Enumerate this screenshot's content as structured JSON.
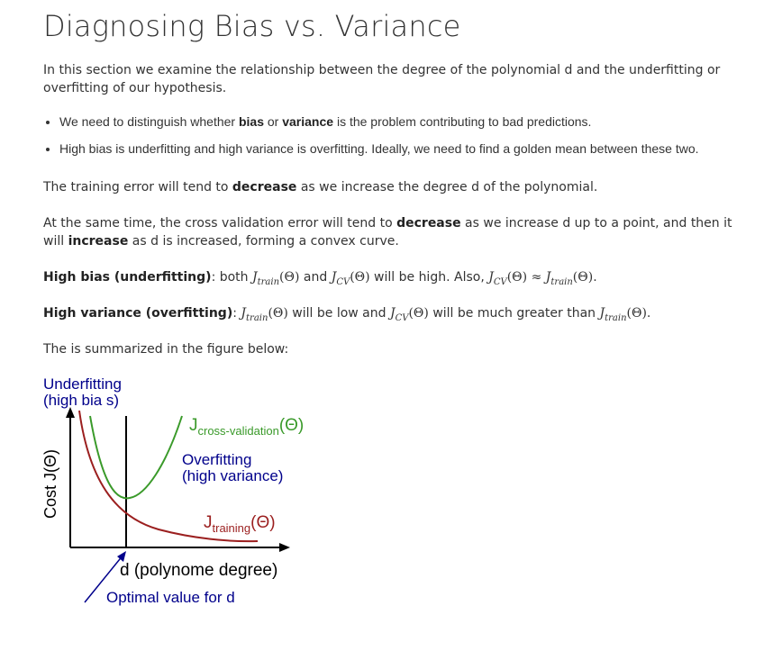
{
  "title": "Diagnosing Bias vs. Variance",
  "intro": "In this section we examine the relationship between the degree of the polynomial d and the underfitting or overfitting of our hypothesis.",
  "bullets": [
    {
      "pre": "We need to distinguish whether ",
      "b1": "bias",
      "mid": " or ",
      "b2": "variance",
      "post": " is the problem contributing to bad predictions."
    },
    {
      "text": "High bias is underfitting and high variance is overfitting. Ideally, we need to find a golden mean between these two."
    }
  ],
  "training_para": {
    "pre": "The training error will tend to ",
    "bold": "decrease",
    "post": " as we increase the degree d of the polynomial."
  },
  "cv_para": {
    "pre": "At the same time, the cross validation error will tend to ",
    "bold1": "decrease",
    "mid": " as we increase d up to a point, and then it will ",
    "bold2": "increase",
    "post": " as d is increased, forming a convex curve."
  },
  "high_bias": {
    "label": "High bias (underfitting)",
    "t1": ": both ",
    "t2": " and ",
    "t3": " will be high. Also, ",
    "t4": "."
  },
  "high_variance": {
    "label": "High variance (overfitting)",
    "t1": ": ",
    "t2": " will be low and ",
    "t3": " will be much greater than ",
    "t4": "."
  },
  "math": {
    "J": "J",
    "train": "train",
    "cv": "CV",
    "theta": "(Θ)",
    "approx": "≈"
  },
  "summary": "The is summarized in the figure below:",
  "figure": {
    "underfit_line1": "Underfitting",
    "underfit_line2": "(high bia s)",
    "overfit_line1": "Overfitting",
    "overfit_line2": "(high variance)",
    "ylabel": "Cost J(Θ)",
    "xlabel": "d (polynome degree)",
    "optimal": "Optimal value for d",
    "cv_J": "J",
    "cv_sub": "cross-validation",
    "cv_theta": "(Θ)",
    "tr_J": "J",
    "tr_sub": "training",
    "tr_theta": "(Θ)",
    "colors": {
      "cv": "#3a9a2a",
      "train": "#9b1f1f",
      "label_blue": "#00008b",
      "axis": "#000000"
    }
  }
}
